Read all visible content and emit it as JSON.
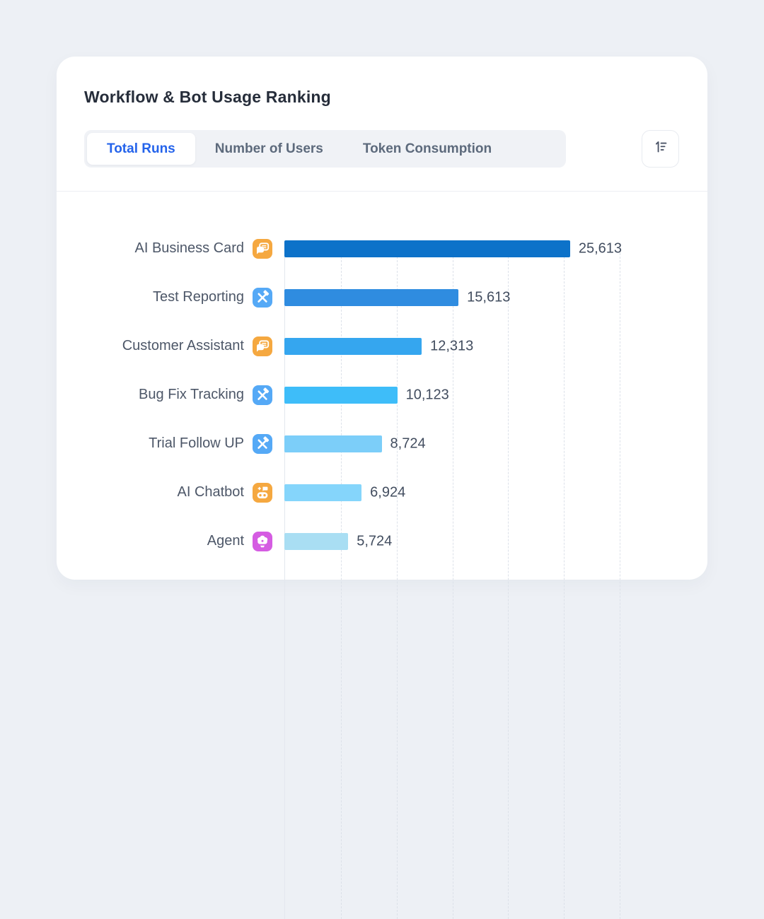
{
  "page": {
    "background_color": "#edf0f5"
  },
  "card": {
    "title": "Workflow & Bot Usage Ranking",
    "tabs": {
      "items": [
        {
          "label": "Total Runs",
          "active": true
        },
        {
          "label": "Number of Users",
          "active": false
        },
        {
          "label": "Token Consumption",
          "active": false
        }
      ],
      "active_text_color": "#2463eb",
      "inactive_text_color": "#5d6a7c"
    },
    "sort_button": {
      "icon": "sort-numeric-icon",
      "icon_color": "#4a5366"
    }
  },
  "chart_data": {
    "type": "bar",
    "orientation": "horizontal",
    "title": "Workflow & Bot Usage Ranking",
    "active_metric": "Total Runs",
    "xlabel": "",
    "ylabel": "",
    "xlim": [
      0,
      30000
    ],
    "grid": true,
    "gridline_interval": 5000,
    "axis_line_color": "#e3e7ee",
    "gridline_color": "#dce1e9",
    "categories": [
      "AI Business Card",
      "Test Reporting",
      "Customer Assistant",
      "Bug Fix Tracking",
      "Trial Follow UP",
      "AI Chatbot",
      "Agent"
    ],
    "values": [
      25613,
      15613,
      12313,
      10123,
      8724,
      6924,
      5724
    ],
    "rows": [
      {
        "label": "AI Business Card",
        "value": 25613,
        "value_label": "25,613",
        "icon": "chat-icon",
        "icon_color": "#f5a840",
        "bar_color": "#0d72c9"
      },
      {
        "label": "Test Reporting",
        "value": 15613,
        "value_label": "15,613",
        "icon": "tools-icon",
        "icon_color": "#55a9f6",
        "bar_color": "#2f8ce0"
      },
      {
        "label": "Customer Assistant",
        "value": 12313,
        "value_label": "12,313",
        "icon": "chat-icon",
        "icon_color": "#f5a840",
        "bar_color": "#35a6ef"
      },
      {
        "label": "Bug Fix Tracking",
        "value": 10123,
        "value_label": "10,123",
        "icon": "tools-icon",
        "icon_color": "#55a9f6",
        "bar_color": "#3ebdf9"
      },
      {
        "label": "Trial Follow UP",
        "value": 8724,
        "value_label": "8,724",
        "icon": "tools-icon",
        "icon_color": "#55a9f6",
        "bar_color": "#7ccef9"
      },
      {
        "label": "AI Chatbot",
        "value": 6924,
        "value_label": "6,924",
        "icon": "robot-icon",
        "icon_color": "#f5a840",
        "bar_color": "#85d5fb"
      },
      {
        "label": "Agent",
        "value": 5724,
        "value_label": "5,724",
        "icon": "agent-icon",
        "icon_color": "#d55ce2",
        "bar_color": "#a9def3"
      }
    ]
  }
}
